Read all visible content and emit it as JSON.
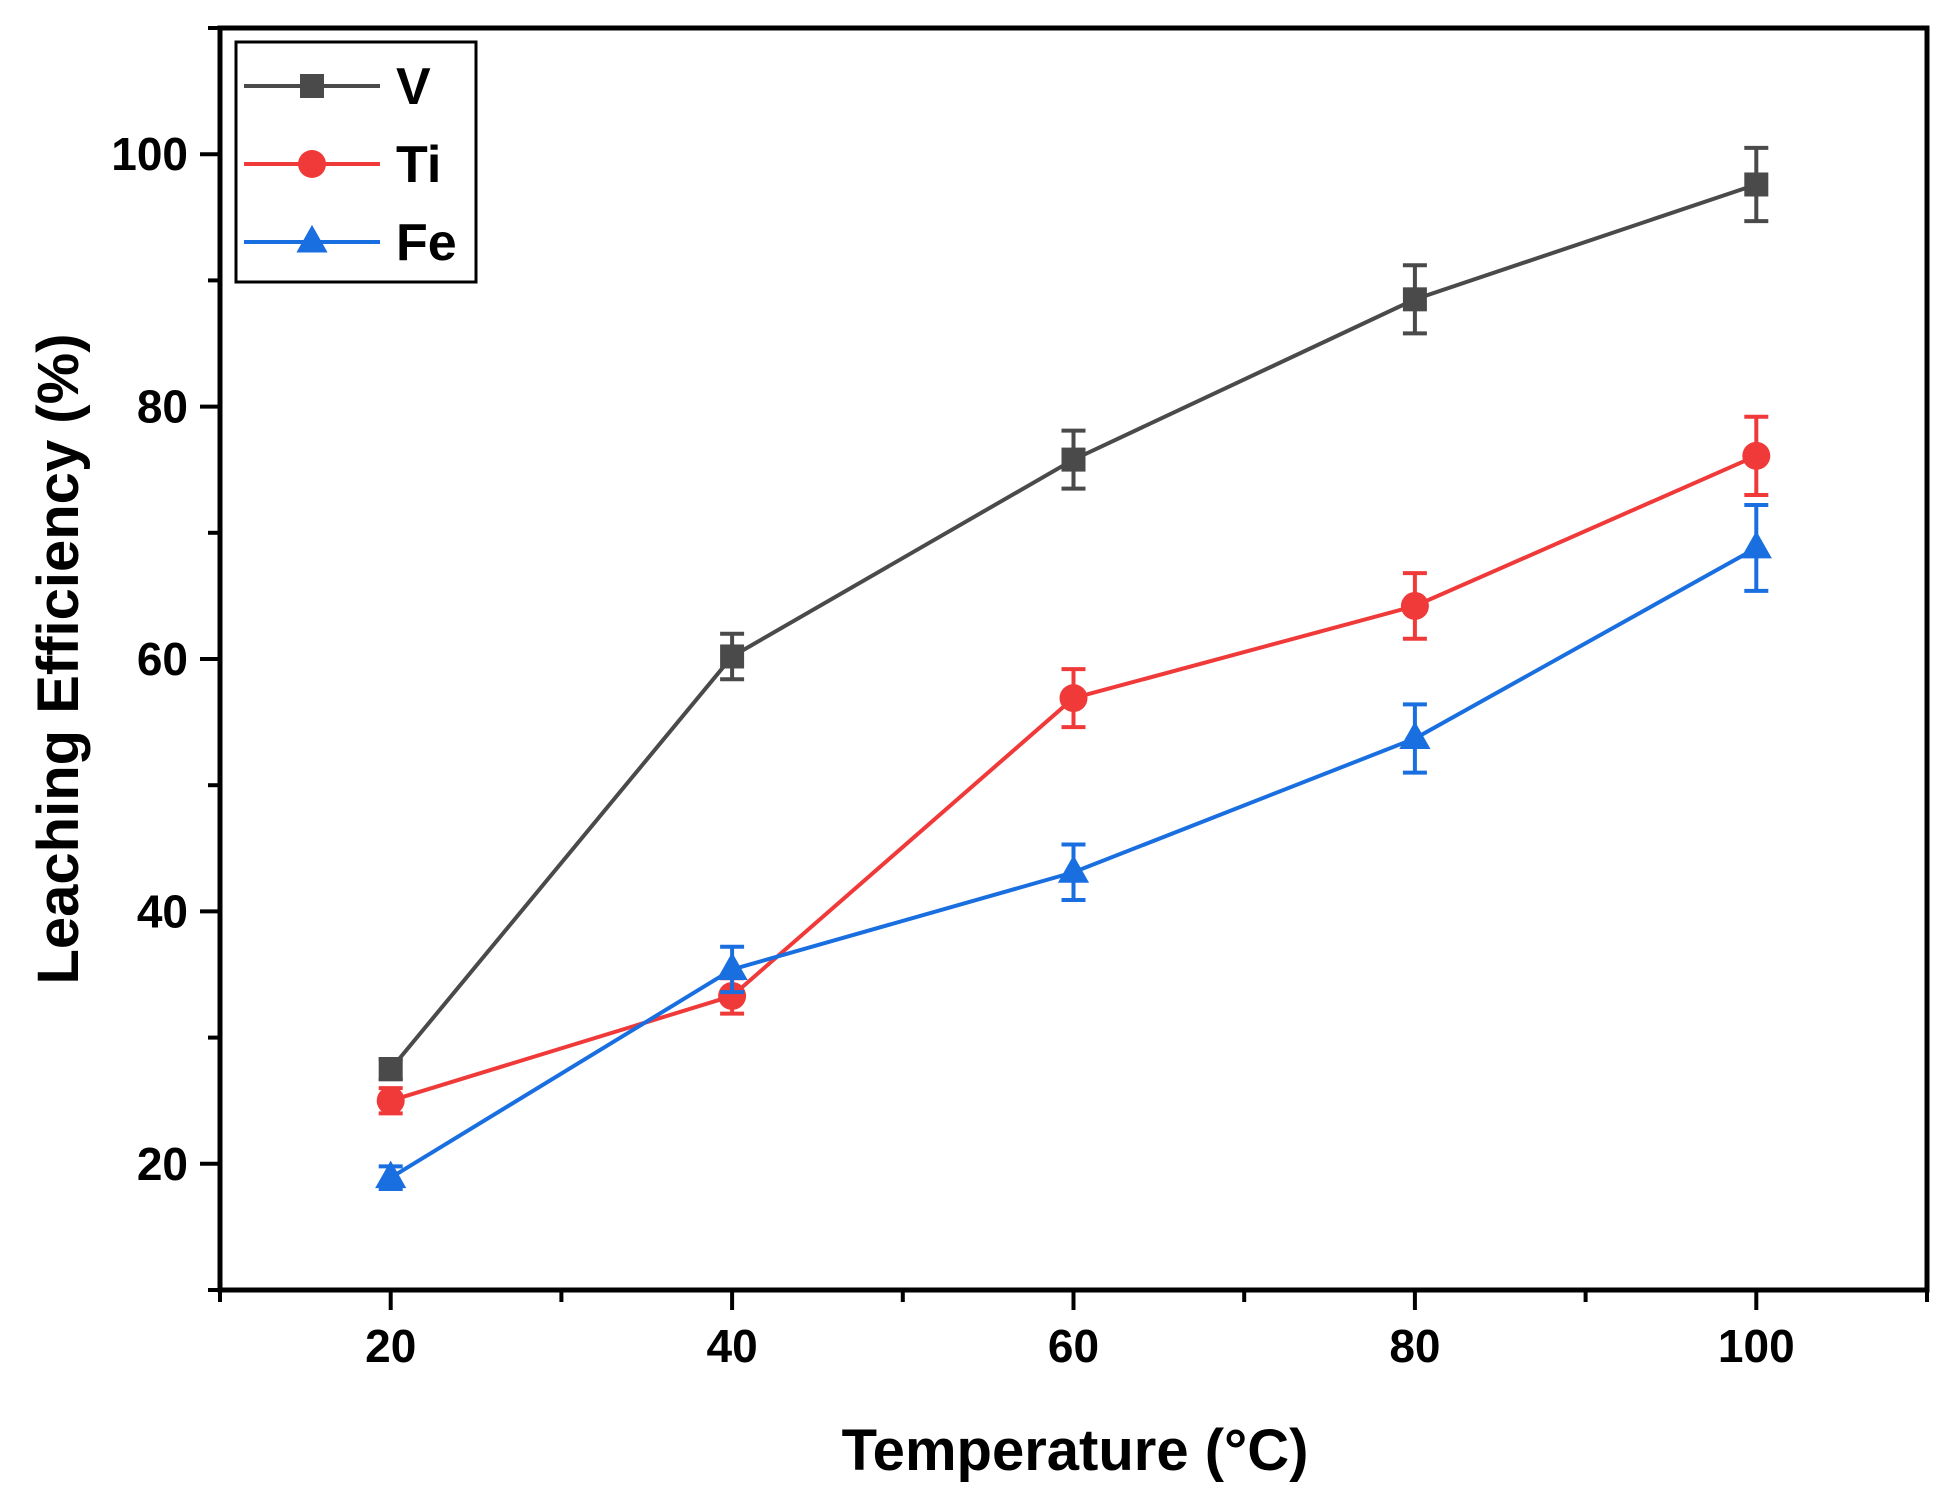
{
  "chart_data": {
    "type": "line",
    "title": "",
    "xlabel": "Temperature (°C)",
    "ylabel": "Leaching Efficiency (%)",
    "xlim": [
      10,
      110
    ],
    "ylim": [
      10,
      110
    ],
    "x": [
      20,
      40,
      60,
      80,
      100
    ],
    "xticks": [
      20,
      40,
      60,
      80,
      100
    ],
    "yticks": [
      20,
      40,
      60,
      80,
      100
    ],
    "grid": false,
    "legend_position": "top-left",
    "series": [
      {
        "name": "V",
        "color": "#4a4a4a",
        "marker": "square",
        "values": [
          27.5,
          60.2,
          75.8,
          88.5,
          97.6
        ],
        "errors": [
          0.8,
          1.8,
          2.3,
          2.7,
          2.9
        ]
      },
      {
        "name": "Ti",
        "color": "#f03a3a",
        "marker": "circle",
        "values": [
          25.0,
          33.3,
          56.9,
          64.2,
          76.1
        ],
        "errors": [
          1.0,
          1.4,
          2.3,
          2.6,
          3.1
        ]
      },
      {
        "name": "Fe",
        "color": "#1a6fe0",
        "marker": "triangle",
        "values": [
          18.9,
          35.4,
          43.1,
          53.7,
          68.8
        ],
        "errors": [
          0.9,
          1.8,
          2.2,
          2.7,
          3.4
        ]
      }
    ]
  }
}
